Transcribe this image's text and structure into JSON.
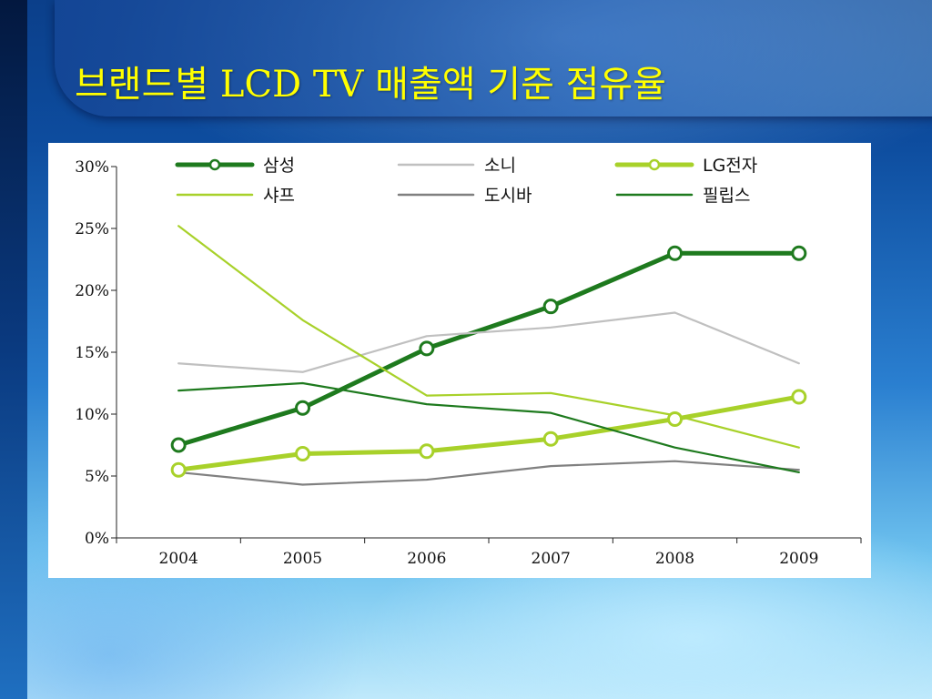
{
  "slide": {
    "title": "브랜드별 LCD TV 매출액 기준 점유율"
  },
  "chart_data": {
    "type": "line",
    "title": "",
    "xlabel": "",
    "ylabel": "",
    "x": [
      "2004",
      "2005",
      "2006",
      "2007",
      "2008",
      "2009"
    ],
    "ylim": [
      0,
      30
    ],
    "yticks": [
      0,
      5,
      10,
      15,
      20,
      25,
      30
    ],
    "ytick_labels": [
      "0%",
      "5%",
      "10%",
      "15%",
      "20%",
      "25%",
      "30%"
    ],
    "grid": false,
    "legend_position": "top",
    "series": [
      {
        "name": "삼성",
        "values": [
          7.5,
          10.5,
          15.3,
          18.7,
          23.0,
          23.0
        ],
        "color": "#1e7a1e",
        "markers": true,
        "width": "thick"
      },
      {
        "name": "소니",
        "values": [
          14.1,
          13.4,
          16.3,
          17.0,
          18.2,
          14.1
        ],
        "color": "#c0c0c0",
        "markers": false,
        "width": "thin"
      },
      {
        "name": "LG전자",
        "values": [
          5.5,
          6.8,
          7.0,
          8.0,
          9.6,
          11.4
        ],
        "color": "#a8d12a",
        "markers": true,
        "width": "thick"
      },
      {
        "name": "샤프",
        "values": [
          25.2,
          17.6,
          11.5,
          11.7,
          9.9,
          7.3
        ],
        "color": "#a8d12a",
        "markers": false,
        "width": "thin"
      },
      {
        "name": "도시바",
        "values": [
          5.3,
          4.3,
          4.7,
          5.8,
          6.2,
          5.5
        ],
        "color": "#808080",
        "markers": false,
        "width": "thin"
      },
      {
        "name": "필립스",
        "values": [
          11.9,
          12.5,
          10.8,
          10.1,
          7.3,
          5.3
        ],
        "color": "#1e7a1e",
        "markers": false,
        "width": "thin"
      }
    ]
  }
}
